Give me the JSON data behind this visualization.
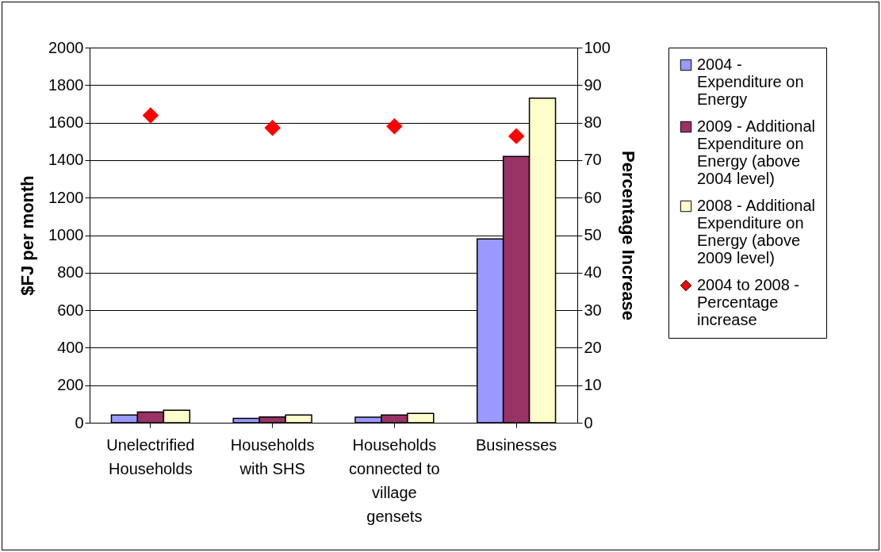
{
  "chart_data": {
    "type": "bar",
    "ylabel": "$FJ per month",
    "y2label": "Percentage Increase",
    "categories": [
      "Unelectrified Households",
      "Households with SHS",
      "Households connected to village gensets",
      "Businesses"
    ],
    "series": [
      {
        "name": "2004 - Expenditure on Energy",
        "color": "#9999ff",
        "values": [
          41,
          23,
          30,
          980
        ]
      },
      {
        "name": "2009 - Additional Expenditure on Energy (above 2004 level)",
        "color": "#993366",
        "values": [
          57,
          31,
          41,
          1420
        ]
      },
      {
        "name": "2008 - Additional Expenditure on Energy (above 2009 level)",
        "color": "#ffffcc",
        "values": [
          67,
          41,
          50,
          1730
        ]
      },
      {
        "name": "2004 to 2008 - Percentage increase",
        "color": "#ff0000",
        "values": [
          81.9,
          78.6,
          79.0,
          76.4
        ],
        "type": "scatter",
        "axis": "y2"
      }
    ],
    "ylim": [
      0,
      2000
    ],
    "yticks": [
      0,
      200,
      400,
      600,
      800,
      1000,
      1200,
      1400,
      1600,
      1800,
      2000
    ],
    "y2lim": [
      0,
      100
    ],
    "y2ticks": [
      0,
      10,
      20,
      30,
      40,
      50,
      60,
      70,
      80,
      90,
      100
    ],
    "grid": "y",
    "legend": "right",
    "marker": "diamond"
  }
}
